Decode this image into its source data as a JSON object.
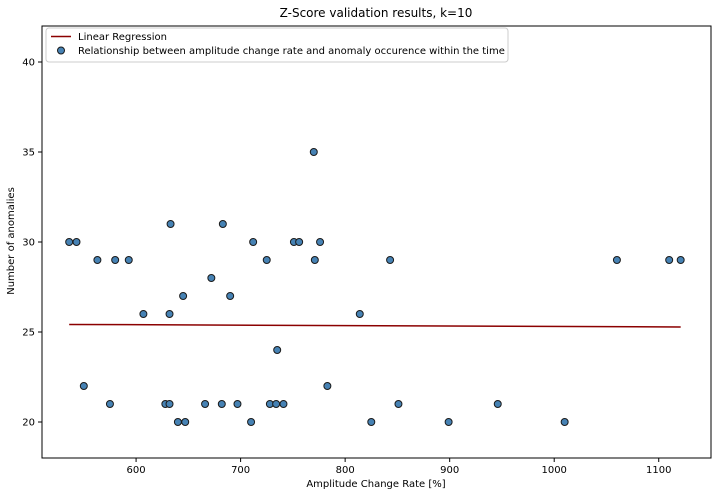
{
  "chart_data": {
    "type": "scatter",
    "title": "Z-Score validation results, k=10",
    "xlabel": "Amplitude Change Rate [%]",
    "ylabel": "Number of anomalies",
    "xlim": [
      510,
      1150
    ],
    "ylim": [
      18,
      42
    ],
    "xticks": [
      "600",
      "700",
      "800",
      "900",
      "1000",
      "1100"
    ],
    "yticks": [
      "20",
      "25",
      "30",
      "35",
      "40"
    ],
    "grid": false,
    "legend_placement": "upper-left",
    "colors": {
      "point_fill": "#4682b4",
      "point_edge": "#1a1a1a",
      "regression_line": "#8b0000"
    },
    "series": [
      {
        "name": "Relationship between amplitude change rate and anomaly occurence within the time",
        "kind": "scatter",
        "x": [
          536,
          543,
          550,
          563,
          575,
          580,
          593,
          607,
          628,
          632,
          632,
          633,
          640,
          645,
          647,
          666,
          672,
          682,
          683,
          690,
          697,
          710,
          712,
          725,
          728,
          734,
          735,
          741,
          751,
          756,
          770,
          771,
          776,
          783,
          814,
          825,
          843,
          851,
          899,
          946,
          1010,
          1060,
          1110,
          1121
        ],
        "y": [
          30,
          30,
          22,
          29,
          21,
          29,
          29,
          26,
          21,
          26,
          21,
          31,
          20,
          27,
          20,
          21,
          28,
          21,
          31,
          27,
          21,
          20,
          30,
          29,
          21,
          21,
          24,
          21,
          30,
          30,
          35,
          29,
          30,
          22,
          26,
          20,
          29,
          21,
          20,
          21,
          20,
          29,
          29,
          29
        ]
      },
      {
        "name": "Linear Regression",
        "kind": "line",
        "x": [
          536,
          1121
        ],
        "y": [
          25.42,
          25.28
        ]
      }
    ]
  }
}
